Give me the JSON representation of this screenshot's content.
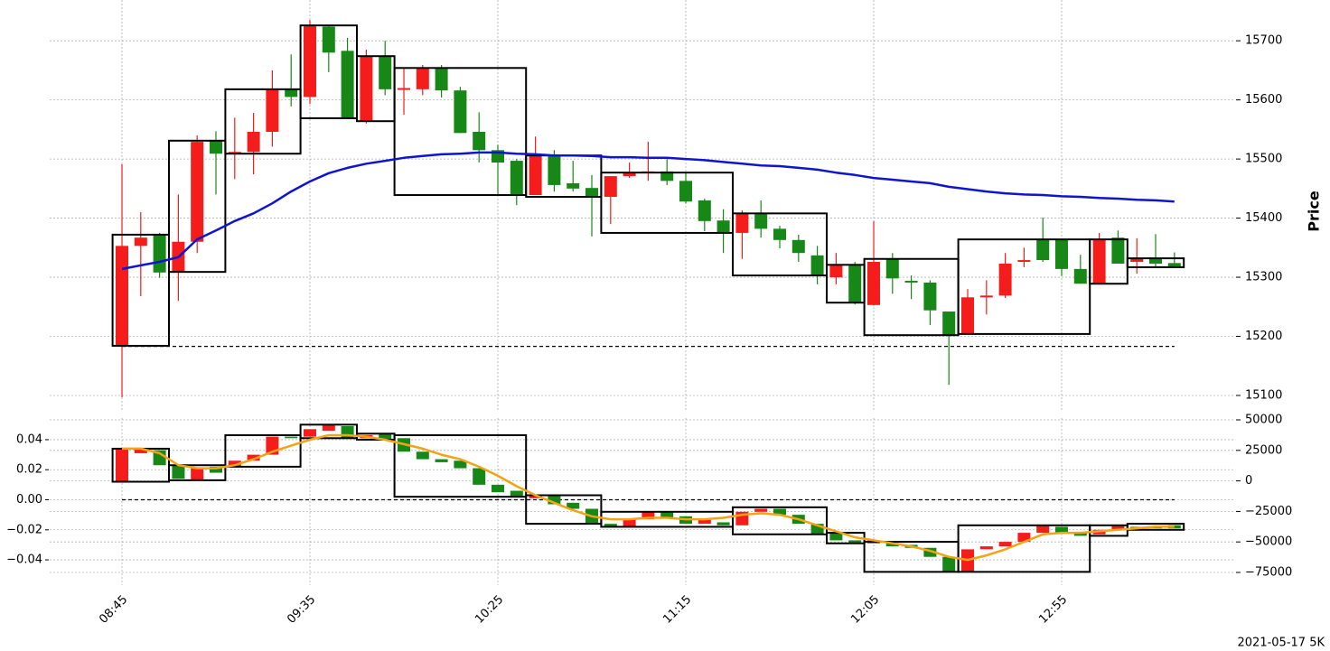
{
  "footer": "2021-05-17 5K",
  "chart_data": [
    {
      "type": "candlestick",
      "ylabel": "Price",
      "open": [
        15184,
        15353,
        15372,
        15309,
        15360,
        15531,
        15509,
        15512,
        15546,
        15619,
        15605,
        15724,
        15683,
        15564,
        15674,
        15617,
        15618,
        15654,
        15616,
        15546,
        15515,
        15497,
        15439,
        15505,
        15459,
        15451,
        15436,
        15471,
        15476,
        15479,
        15463,
        15430,
        15396,
        15375,
        15407,
        15382,
        15363,
        15337,
        15300,
        15321,
        15253,
        15331,
        15294,
        15291,
        15242,
        15204,
        15266,
        15269,
        15326,
        15364,
        15364,
        15314,
        15289,
        15367,
        15326,
        15332,
        15324
      ],
      "high": [
        15491,
        15410,
        15375,
        15440,
        15540,
        15547,
        15570,
        15578,
        15650,
        15677,
        15735,
        15726,
        15705,
        15685,
        15700,
        15654,
        15659,
        15659,
        15622,
        15579,
        15524,
        15500,
        15538,
        15515,
        15497,
        15473,
        15471,
        15494,
        15529,
        15500,
        15476,
        15433,
        15415,
        15413,
        15430,
        15387,
        15372,
        15353,
        15341,
        15326,
        15395,
        15341,
        15303,
        15295,
        15242,
        15280,
        15295,
        15341,
        15350,
        15401,
        15364,
        15338,
        15375,
        15379,
        15366,
        15373,
        15342
      ],
      "low": [
        15097,
        15268,
        15299,
        15260,
        15341,
        15440,
        15466,
        15474,
        15521,
        15589,
        15593,
        15647,
        15569,
        15560,
        15608,
        15575,
        15608,
        15604,
        15544,
        15494,
        15439,
        15422,
        15439,
        15445,
        15445,
        15369,
        15390,
        15468,
        15463,
        15456,
        15425,
        15378,
        15341,
        15331,
        15367,
        15349,
        15326,
        15288,
        15288,
        15254,
        15252,
        15272,
        15263,
        15219,
        15118,
        15204,
        15237,
        15265,
        15317,
        15326,
        15302,
        15289,
        15289,
        15323,
        15306,
        15318,
        15317
      ],
      "close": [
        15353,
        15367,
        15308,
        15360,
        15529,
        15509,
        15512,
        15546,
        15618,
        15605,
        15726,
        15680,
        15569,
        15674,
        15618,
        15620,
        15653,
        15616,
        15544,
        15515,
        15494,
        15439,
        15506,
        15456,
        15450,
        15436,
        15471,
        15477,
        15479,
        15463,
        15428,
        15395,
        15375,
        15408,
        15382,
        15363,
        15341,
        15303,
        15321,
        15257,
        15326,
        15298,
        15291,
        15244,
        15202,
        15266,
        15269,
        15323,
        15329,
        15329,
        15314,
        15289,
        15364,
        15323,
        15331,
        15323,
        15317
      ],
      "up_color": "#f51c1c",
      "down_color": "#178817",
      "line": {
        "color": "#0f14d2",
        "values": [
          15314,
          15320,
          15326,
          15334,
          15364,
          15379,
          15395,
          15408,
          15425,
          15445,
          15462,
          15476,
          15485,
          15492,
          15497,
          15502,
          15505,
          15508,
          15509,
          15511,
          15511,
          15509,
          15508,
          15506,
          15506,
          15505,
          15503,
          15503,
          15502,
          15502,
          15500,
          15498,
          15495,
          15492,
          15489,
          15488,
          15485,
          15482,
          15477,
          15473,
          15468,
          15465,
          15462,
          15459,
          15453,
          15449,
          15445,
          15442,
          15440,
          15439,
          15437,
          15436,
          15434,
          15433,
          15431,
          15430,
          15428
        ]
      },
      "boxes": [
        {
          "start": 0,
          "end": 2,
          "high": 15372,
          "low": 15184
        },
        {
          "start": 3,
          "end": 5,
          "high": 15531,
          "low": 15309
        },
        {
          "start": 6,
          "end": 9,
          "high": 15618,
          "low": 15509
        },
        {
          "start": 10,
          "end": 12,
          "high": 15726,
          "low": 15569
        },
        {
          "start": 13,
          "end": 14,
          "high": 15674,
          "low": 15564
        },
        {
          "start": 15,
          "end": 21,
          "high": 15654,
          "low": 15439
        },
        {
          "start": 22,
          "end": 25,
          "high": 15506,
          "low": 15436
        },
        {
          "start": 26,
          "end": 32,
          "high": 15477,
          "low": 15375
        },
        {
          "start": 33,
          "end": 37,
          "high": 15408,
          "low": 15303
        },
        {
          "start": 38,
          "end": 39,
          "high": 15321,
          "low": 15257
        },
        {
          "start": 40,
          "end": 44,
          "high": 15331,
          "low": 15202
        },
        {
          "start": 45,
          "end": 51,
          "high": 15364,
          "low": 15204
        },
        {
          "start": 52,
          "end": 53,
          "high": 15364,
          "low": 15289
        },
        {
          "start": 54,
          "end": 56,
          "high": 15332,
          "low": 15317
        }
      ],
      "box_color": "#000000",
      "hline": 15183,
      "ylim": [
        15074,
        15769
      ],
      "yticks": [
        15100,
        15200,
        15300,
        15400,
        15500,
        15600,
        15700
      ],
      "grid": true
    },
    {
      "type": "candlestick",
      "categories": [
        "08:45",
        null,
        null,
        null,
        null,
        null,
        null,
        null,
        null,
        null,
        "09:35",
        null,
        null,
        null,
        null,
        null,
        null,
        null,
        null,
        null,
        "10:25",
        null,
        null,
        null,
        null,
        null,
        null,
        null,
        null,
        null,
        "11:15",
        null,
        null,
        null,
        null,
        null,
        null,
        null,
        null,
        null,
        "12:05",
        null,
        null,
        null,
        null,
        null,
        null,
        null,
        null,
        null,
        "12:55",
        null,
        null,
        null,
        null,
        null,
        null
      ],
      "open": [
        0.012,
        0.031,
        0.033,
        0.023,
        0.013,
        0.022,
        0.022,
        0.026,
        0.03,
        0.042,
        0.042,
        0.046,
        0.049,
        0.041,
        0.044,
        0.041,
        0.032,
        0.027,
        0.026,
        0.021,
        0.01,
        0.006,
        0.001,
        0.003,
        -0.002,
        -0.006,
        -0.016,
        -0.018,
        -0.013,
        -0.008,
        -0.011,
        -0.016,
        -0.015,
        -0.017,
        -0.008,
        -0.006,
        -0.01,
        -0.016,
        -0.022,
        -0.027,
        -0.029,
        -0.029,
        -0.03,
        -0.032,
        -0.038,
        -0.048,
        -0.033,
        -0.031,
        -0.028,
        -0.022,
        -0.018,
        -0.022,
        -0.023,
        -0.02,
        -0.018,
        -0.018,
        -0.017
      ],
      "close": [
        0.034,
        0.034,
        0.023,
        0.014,
        0.021,
        0.018,
        0.026,
        0.03,
        0.042,
        0.041,
        0.047,
        0.05,
        0.041,
        0.043,
        0.04,
        0.032,
        0.027,
        0.025,
        0.021,
        0.01,
        0.005,
        0.002,
        0.003,
        -0.003,
        -0.006,
        -0.016,
        -0.018,
        -0.013,
        -0.008,
        -0.012,
        -0.016,
        -0.013,
        -0.017,
        -0.008,
        -0.006,
        -0.01,
        -0.016,
        -0.023,
        -0.027,
        -0.029,
        -0.027,
        -0.031,
        -0.032,
        -0.038,
        -0.048,
        -0.033,
        -0.031,
        -0.028,
        -0.022,
        -0.017,
        -0.022,
        -0.024,
        -0.02,
        -0.017,
        -0.02,
        -0.019,
        -0.019
      ],
      "up_color": "#f51c1c",
      "down_color": "#178817",
      "line": {
        "color": "#f5a214",
        "values": [
          0.034,
          0.034,
          0.031,
          0.023,
          0.021,
          0.021,
          0.023,
          0.027,
          0.032,
          0.036,
          0.04,
          0.043,
          0.043,
          0.042,
          0.04,
          0.037,
          0.034,
          0.03,
          0.027,
          0.022,
          0.016,
          0.009,
          0.003,
          -0.002,
          -0.007,
          -0.011,
          -0.013,
          -0.013,
          -0.012,
          -0.012,
          -0.013,
          -0.013,
          -0.012,
          -0.01,
          -0.009,
          -0.01,
          -0.013,
          -0.017,
          -0.021,
          -0.025,
          -0.027,
          -0.029,
          -0.031,
          -0.034,
          -0.038,
          -0.04,
          -0.037,
          -0.033,
          -0.028,
          -0.023,
          -0.022,
          -0.022,
          -0.021,
          -0.02,
          -0.019,
          -0.018,
          -0.018
        ]
      },
      "boxes": [
        {
          "start": 0,
          "end": 2,
          "high": 0.034,
          "low": 0.012
        },
        {
          "start": 3,
          "end": 5,
          "high": 0.023,
          "low": 0.013
        },
        {
          "start": 6,
          "end": 9,
          "high": 0.043,
          "low": 0.022
        },
        {
          "start": 10,
          "end": 12,
          "high": 0.05,
          "low": 0.041
        },
        {
          "start": 13,
          "end": 14,
          "high": 0.044,
          "low": 0.04
        },
        {
          "start": 15,
          "end": 21,
          "high": 0.043,
          "low": 0.002
        },
        {
          "start": 22,
          "end": 25,
          "high": 0.003,
          "low": -0.016
        },
        {
          "start": 26,
          "end": 32,
          "high": -0.008,
          "low": -0.018
        },
        {
          "start": 33,
          "end": 37,
          "high": -0.005,
          "low": -0.023
        },
        {
          "start": 38,
          "end": 39,
          "high": -0.022,
          "low": -0.029
        },
        {
          "start": 40,
          "end": 44,
          "high": -0.028,
          "low": -0.048
        },
        {
          "start": 45,
          "end": 51,
          "high": -0.017,
          "low": -0.048
        },
        {
          "start": 52,
          "end": 53,
          "high": -0.017,
          "low": -0.024
        },
        {
          "start": 54,
          "end": 56,
          "high": -0.016,
          "low": -0.02
        }
      ],
      "box_color": "#000000",
      "hline": 0,
      "ylim": [
        -0.0568,
        0.0544
      ],
      "yticks": [
        {
          "value": -0.04,
          "label": "−0.04"
        },
        {
          "value": -0.02,
          "label": "−0.02"
        },
        {
          "value": 0,
          "label": "0.00"
        },
        0.02,
        0.04
      ],
      "y2lim": [
        -85355,
        51479
      ],
      "y2ticks": [
        {
          "value": -75000,
          "label": "−75000"
        },
        {
          "value": -50000,
          "label": "−50000"
        },
        {
          "value": -25000,
          "label": "−25000"
        },
        0,
        25000,
        50000
      ],
      "grid": true
    }
  ]
}
